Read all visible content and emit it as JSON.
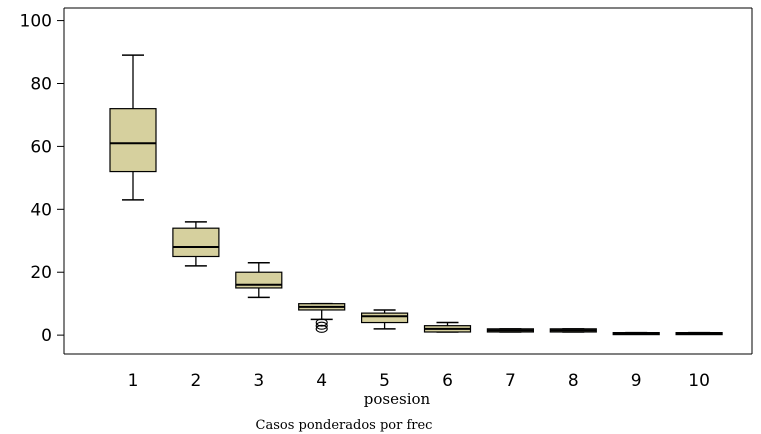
{
  "chart_data": {
    "type": "boxplot",
    "title": "",
    "xlabel": "posesion",
    "ylabel": "",
    "footnote": "Casos ponderados por frec",
    "ylim": [
      -6,
      104
    ],
    "yticks": [
      0,
      20,
      40,
      60,
      80,
      100
    ],
    "grid": false,
    "legend": "none",
    "colors": {
      "box_fill": "#d6d09e",
      "stroke": "#000000",
      "background": "#ffffff"
    },
    "categories": [
      "1",
      "2",
      "3",
      "4",
      "5",
      "6",
      "7",
      "8",
      "9",
      "10"
    ],
    "boxes": [
      {
        "category": "1",
        "min": 43,
        "q1": 52,
        "median": 61,
        "q3": 72,
        "max": 89,
        "outliers": []
      },
      {
        "category": "2",
        "min": 22,
        "q1": 25,
        "median": 28,
        "q3": 34,
        "max": 36,
        "outliers": []
      },
      {
        "category": "3",
        "min": 12,
        "q1": 15,
        "median": 16,
        "q3": 20,
        "max": 23,
        "outliers": []
      },
      {
        "category": "4",
        "min": 5,
        "q1": 8,
        "median": 9,
        "q3": 10,
        "max": 10,
        "outliers": [
          4,
          3,
          2
        ]
      },
      {
        "category": "5",
        "min": 2,
        "q1": 4,
        "median": 6,
        "q3": 7,
        "max": 8,
        "outliers": []
      },
      {
        "category": "6",
        "min": 1,
        "q1": 1,
        "median": 2,
        "q3": 3,
        "max": 4,
        "outliers": []
      },
      {
        "category": "7",
        "min": 1,
        "q1": 1,
        "median": 1.5,
        "q3": 2,
        "max": 2,
        "outliers": []
      },
      {
        "category": "8",
        "min": 1,
        "q1": 1,
        "median": 1.5,
        "q3": 2,
        "max": 2,
        "outliers": []
      },
      {
        "category": "9",
        "min": 0.6,
        "q1": 0.6,
        "median": 0.6,
        "q3": 0.8,
        "max": 0.8,
        "outliers": []
      },
      {
        "category": "10",
        "min": 0.6,
        "q1": 0.6,
        "median": 0.6,
        "q3": 0.8,
        "max": 0.8,
        "outliers": []
      }
    ]
  }
}
